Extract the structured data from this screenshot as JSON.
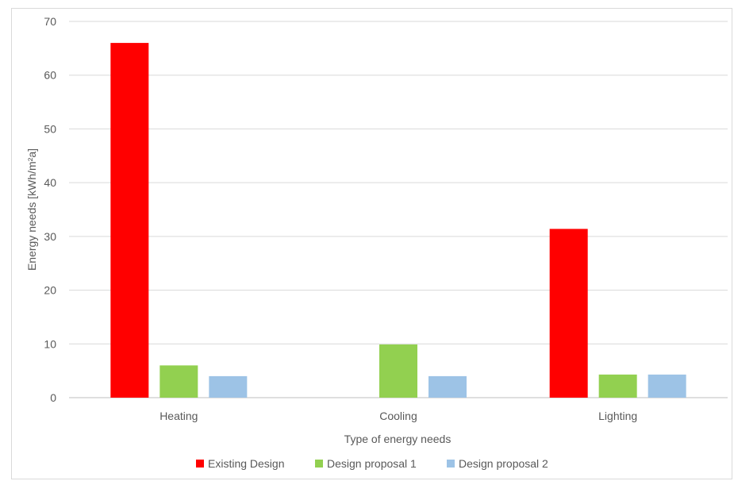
{
  "chart_data": {
    "type": "bar",
    "title": "",
    "xlabel": "Type of energy needs",
    "ylabel": "Energy needs [kWh/m²a]",
    "ylim": [
      0,
      70
    ],
    "yticks": [
      0,
      10,
      20,
      30,
      40,
      50,
      60,
      70
    ],
    "categories": [
      "Heating",
      "Cooling",
      "Lighting"
    ],
    "series": [
      {
        "name": "Existing Design",
        "color": "#ff0000",
        "values": [
          66,
          0,
          31.4
        ]
      },
      {
        "name": "Design proposal 1",
        "color": "#92d050",
        "values": [
          6,
          9.9,
          4.3
        ]
      },
      {
        "name": "Design proposal 2",
        "color": "#9dc3e6",
        "values": [
          4,
          4,
          4.3
        ]
      }
    ],
    "grid": true,
    "legend_position": "bottom"
  }
}
